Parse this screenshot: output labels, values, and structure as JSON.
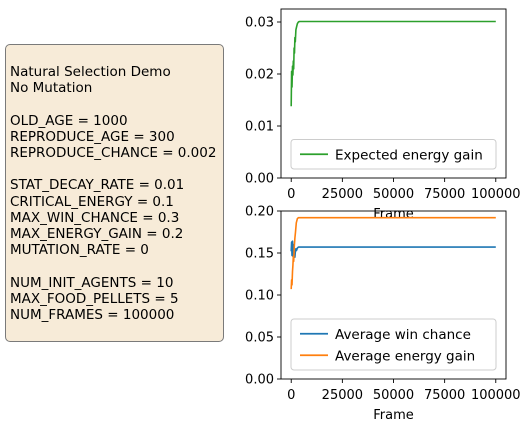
{
  "info_panel": {
    "lines": [
      "Natural Selection Demo",
      "No Mutation",
      "",
      "OLD_AGE = 1000",
      "REPRODUCE_AGE = 300",
      "REPRODUCE_CHANCE = 0.002",
      "",
      "STAT_DECAY_RATE = 0.01",
      "CRITICAL_ENERGY = 0.1",
      "MAX_WIN_CHANCE = 0.3",
      "MAX_ENERGY_GAIN = 0.2",
      "MUTATION_RATE = 0",
      "",
      "NUM_INIT_AGENTS = 10",
      "MAX_FOOD_PELLETS = 5",
      "NUM_FRAMES = 100000"
    ],
    "background": "#f7ebd8"
  },
  "chart_data": [
    {
      "type": "line",
      "xlabel": "Frame",
      "ylabel": "",
      "xlim": [
        -5000,
        105000
      ],
      "ylim": [
        0,
        0.0325
      ],
      "xticks": [
        0,
        25000,
        50000,
        75000,
        100000
      ],
      "yticks": [
        0.0,
        0.01,
        0.02,
        0.03
      ],
      "ytick_labels": [
        "0.00",
        "0.01",
        "0.02",
        "0.03"
      ],
      "legend": "lower-right",
      "series": [
        {
          "name": "Expected energy gain",
          "color": "#2ca02c",
          "x": [
            0,
            200,
            400,
            600,
            800,
            1000,
            1200,
            1400,
            1600,
            1800,
            2000,
            2300,
            2600,
            3000,
            3500,
            4000,
            5000,
            10000,
            25000,
            50000,
            75000,
            100000
          ],
          "y": [
            0.0138,
            0.0205,
            0.0175,
            0.0215,
            0.0198,
            0.0225,
            0.021,
            0.025,
            0.024,
            0.027,
            0.0262,
            0.0285,
            0.029,
            0.0297,
            0.03,
            0.0301,
            0.0301,
            0.0301,
            0.0301,
            0.0301,
            0.0301,
            0.0301
          ]
        }
      ]
    },
    {
      "type": "line",
      "xlabel": "Frame",
      "ylabel": "",
      "xlim": [
        -5000,
        105000
      ],
      "ylim": [
        0,
        0.2
      ],
      "xticks": [
        0,
        25000,
        50000,
        75000,
        100000
      ],
      "yticks": [
        0.0,
        0.05,
        0.1,
        0.15,
        0.2
      ],
      "ytick_labels": [
        "0.00",
        "0.05",
        "0.10",
        "0.15",
        "0.20"
      ],
      "legend": "lower-right",
      "series": [
        {
          "name": "Average win chance",
          "color": "#1f77b4",
          "x": [
            0,
            200,
            400,
            600,
            800,
            1000,
            1200,
            1500,
            1800,
            2000,
            2300,
            2600,
            3000,
            3500,
            4000,
            5000,
            10000,
            25000,
            50000,
            75000,
            100000
          ],
          "y": [
            0.152,
            0.163,
            0.147,
            0.164,
            0.146,
            0.16,
            0.148,
            0.154,
            0.145,
            0.151,
            0.155,
            0.153,
            0.156,
            0.157,
            0.157,
            0.157,
            0.157,
            0.157,
            0.157,
            0.157,
            0.157
          ]
        },
        {
          "name": "Average energy gain",
          "color": "#ff7f0e",
          "x": [
            0,
            200,
            400,
            600,
            800,
            1000,
            1200,
            1500,
            1800,
            2100,
            2500,
            3000,
            3500,
            4000,
            5000,
            10000,
            25000,
            50000,
            75000,
            100000
          ],
          "y": [
            0.107,
            0.118,
            0.112,
            0.128,
            0.135,
            0.146,
            0.14,
            0.158,
            0.168,
            0.175,
            0.186,
            0.191,
            0.192,
            0.192,
            0.192,
            0.192,
            0.192,
            0.192,
            0.192,
            0.192
          ]
        }
      ]
    }
  ]
}
